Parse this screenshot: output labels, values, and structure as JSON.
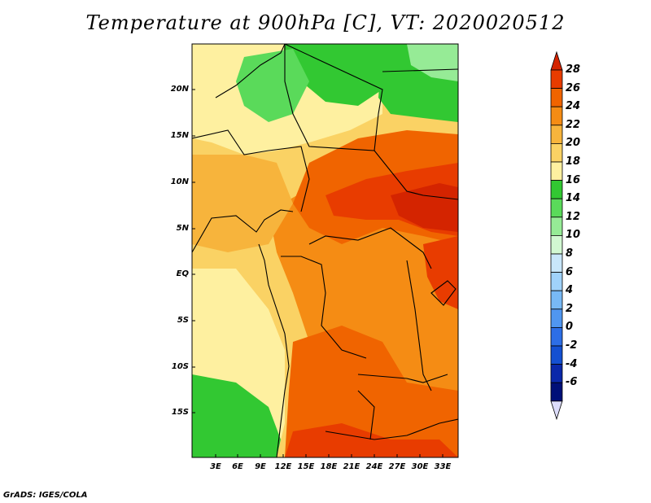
{
  "title": "Temperature at 900hPa [C], VT: 2020020512",
  "credit": "GrADS: IGES/COLA",
  "map": {
    "lat_labels": [
      "20N",
      "15N",
      "10N",
      "5N",
      "EQ",
      "5S",
      "10S",
      "15S"
    ],
    "lon_labels": [
      "3E",
      "6E",
      "9E",
      "12E",
      "15E",
      "18E",
      "21E",
      "24E",
      "27E",
      "30E",
      "33E"
    ]
  },
  "colorbar": {
    "levels": [
      "28",
      "26",
      "24",
      "22",
      "20",
      "18",
      "16",
      "14",
      "12",
      "10",
      "8",
      "6",
      "4",
      "2",
      "0",
      "-2",
      "-4",
      "-6"
    ],
    "colors": [
      "#d42400",
      "#e83c00",
      "#f06400",
      "#f58c14",
      "#f7b43c",
      "#fad264",
      "#fef0a0",
      "#32c832",
      "#5ada5a",
      "#96eb96",
      "#d2f8d2",
      "#c8e6fa",
      "#a0d2fa",
      "#78b9f5",
      "#5096f0",
      "#2d6ee6",
      "#1450d2",
      "#0a28aa",
      "#001078",
      "#dcdcfa"
    ]
  }
}
